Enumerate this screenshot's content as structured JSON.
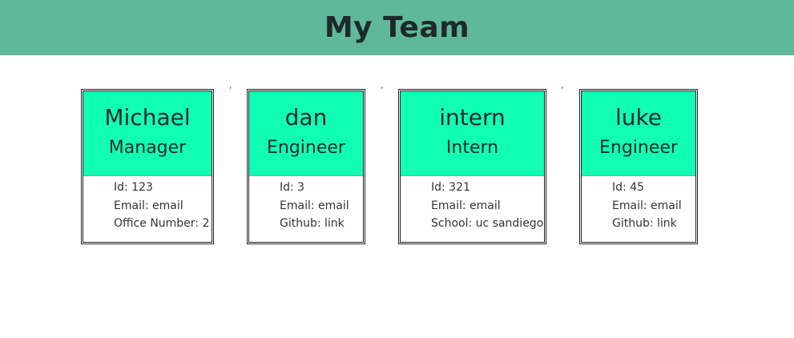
{
  "header": {
    "title": "My Team"
  },
  "separators": [
    ",",
    ",",
    ","
  ],
  "employees": [
    {
      "name": "Michael",
      "role": "Manager",
      "id_line": "Id: 123",
      "email_line": "Email: email",
      "extra_line": "Office Number: 2"
    },
    {
      "name": "dan",
      "role": "Engineer",
      "id_line": "Id: 3",
      "email_line": "Email: email",
      "extra_line": "Github: link"
    },
    {
      "name": "intern",
      "role": "Intern",
      "id_line": "Id: 321",
      "email_line": "Email: email",
      "extra_line": "School: uc sandiego"
    },
    {
      "name": "luke",
      "role": "Engineer",
      "id_line": "Id: 45",
      "email_line": "Email: email",
      "extra_line": "Github: link"
    }
  ]
}
